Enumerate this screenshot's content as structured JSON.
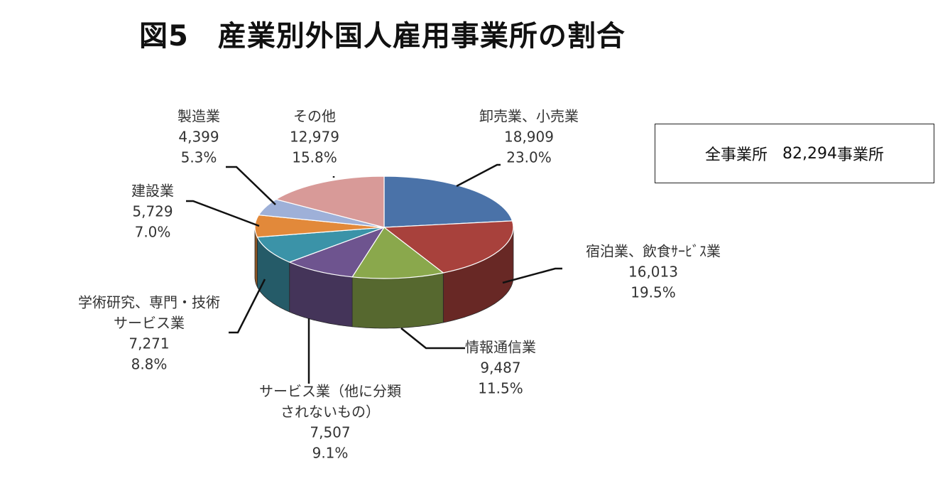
{
  "title": "図5　産業別外国人雇用事業所の割合",
  "total": {
    "label": "全事業所",
    "value": "82,294",
    "unit": "事業所"
  },
  "chart_data": {
    "type": "pie",
    "title": "図5　産業別外国人雇用事業所の割合",
    "unit": "事業所",
    "slices": [
      {
        "name": "卸売業、小売業",
        "lines": [
          "卸売業、小売業"
        ],
        "value": 18909,
        "value_label": "18,909",
        "pct_label": "23.0%",
        "color": "#4a72a8"
      },
      {
        "name": "宿泊業、飲食サービス業",
        "lines": [
          "宿泊業、飲食ｻｰﾋﾞｽ業"
        ],
        "value": 16013,
        "value_label": "16,013",
        "pct_label": "19.5%",
        "color": "#a8413c"
      },
      {
        "name": "情報通信業",
        "lines": [
          "情報通信業"
        ],
        "value": 9487,
        "value_label": "9,487",
        "pct_label": "11.5%",
        "color": "#8aa84c"
      },
      {
        "name": "サービス業（他に分類されないもの）",
        "lines": [
          "サービス業（他に分類",
          "されないもの）"
        ],
        "value": 7507,
        "value_label": "7,507",
        "pct_label": "9.1%",
        "color": "#6e548f"
      },
      {
        "name": "学術研究、専門・技術サービス業",
        "lines": [
          "学術研究、専門・技術",
          "サービス業"
        ],
        "value": 7271,
        "value_label": "7,271",
        "pct_label": "8.8%",
        "color": "#3b93a8"
      },
      {
        "name": "建設業",
        "lines": [
          "建設業"
        ],
        "value": 5729,
        "value_label": "5,729",
        "pct_label": "7.0%",
        "color": "#e2893a"
      },
      {
        "name": "製造業",
        "lines": [
          "製造業"
        ],
        "value": 4399,
        "value_label": "4,399",
        "pct_label": "5.3%",
        "color": "#9eb0d8"
      },
      {
        "name": "その他",
        "lines": [
          "その他"
        ],
        "value": 12979,
        "value_label": "12,979",
        "pct_label": "15.8%",
        "color": "#d89a98"
      }
    ]
  }
}
